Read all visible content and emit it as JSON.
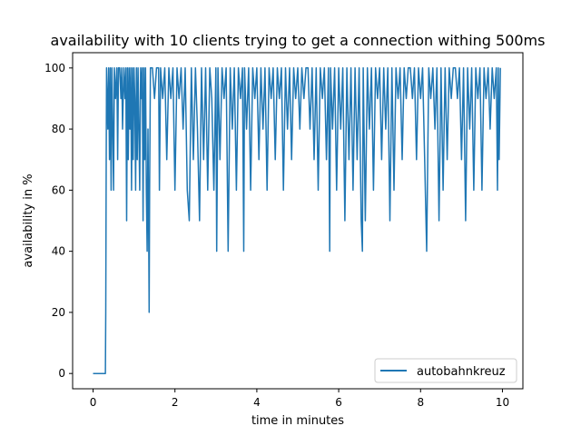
{
  "chart_data": {
    "type": "line",
    "title": "availability with 10 clients trying to get a connection withing 500ms",
    "xlabel": "time in minutes",
    "ylabel": "availability in %",
    "xlim": [
      -0.5,
      10.5
    ],
    "ylim": [
      -5,
      105
    ],
    "xticks": [
      0,
      2,
      4,
      6,
      8,
      10
    ],
    "yticks": [
      0,
      20,
      40,
      60,
      80,
      100
    ],
    "grid": false,
    "legend": "lower-right",
    "series": [
      {
        "name": "autobahnkreuz",
        "color": "#1f77b4",
        "points": [
          [
            0.0,
            0
          ],
          [
            0.3,
            0
          ],
          [
            0.31,
            20
          ],
          [
            0.32,
            70
          ],
          [
            0.33,
            100
          ],
          [
            0.36,
            80
          ],
          [
            0.38,
            100
          ],
          [
            0.4,
            70
          ],
          [
            0.42,
            100
          ],
          [
            0.44,
            60
          ],
          [
            0.46,
            100
          ],
          [
            0.48,
            80
          ],
          [
            0.5,
            60
          ],
          [
            0.52,
            100
          ],
          [
            0.55,
            90
          ],
          [
            0.58,
            100
          ],
          [
            0.6,
            70
          ],
          [
            0.62,
            100
          ],
          [
            0.65,
            100
          ],
          [
            0.68,
            90
          ],
          [
            0.7,
            100
          ],
          [
            0.72,
            80
          ],
          [
            0.75,
            100
          ],
          [
            0.78,
            90
          ],
          [
            0.8,
            100
          ],
          [
            0.82,
            50
          ],
          [
            0.84,
            100
          ],
          [
            0.86,
            70
          ],
          [
            0.88,
            100
          ],
          [
            0.9,
            80
          ],
          [
            0.92,
            100
          ],
          [
            0.94,
            60
          ],
          [
            0.96,
            100
          ],
          [
            0.98,
            70
          ],
          [
            1.0,
            100
          ],
          [
            1.02,
            90
          ],
          [
            1.04,
            60
          ],
          [
            1.06,
            100
          ],
          [
            1.08,
            70
          ],
          [
            1.1,
            100
          ],
          [
            1.12,
            80
          ],
          [
            1.14,
            60
          ],
          [
            1.16,
            100
          ],
          [
            1.18,
            90
          ],
          [
            1.2,
            100
          ],
          [
            1.22,
            50
          ],
          [
            1.24,
            100
          ],
          [
            1.26,
            70
          ],
          [
            1.28,
            100
          ],
          [
            1.3,
            60
          ],
          [
            1.32,
            40
          ],
          [
            1.34,
            80
          ],
          [
            1.36,
            40
          ],
          [
            1.37,
            20
          ],
          [
            1.38,
            60
          ],
          [
            1.4,
            100
          ],
          [
            1.45,
            100
          ],
          [
            1.5,
            90
          ],
          [
            1.55,
            100
          ],
          [
            1.6,
            100
          ],
          [
            1.62,
            60
          ],
          [
            1.65,
            100
          ],
          [
            1.7,
            90
          ],
          [
            1.75,
            100
          ],
          [
            1.8,
            70
          ],
          [
            1.85,
            100
          ],
          [
            1.9,
            90
          ],
          [
            1.95,
            100
          ],
          [
            2.0,
            60
          ],
          [
            2.05,
            100
          ],
          [
            2.1,
            90
          ],
          [
            2.15,
            100
          ],
          [
            2.2,
            80
          ],
          [
            2.25,
            100
          ],
          [
            2.3,
            60
          ],
          [
            2.35,
            50
          ],
          [
            2.4,
            100
          ],
          [
            2.45,
            70
          ],
          [
            2.5,
            100
          ],
          [
            2.55,
            80
          ],
          [
            2.6,
            50
          ],
          [
            2.65,
            100
          ],
          [
            2.7,
            70
          ],
          [
            2.75,
            100
          ],
          [
            2.8,
            60
          ],
          [
            2.85,
            100
          ],
          [
            2.9,
            90
          ],
          [
            2.95,
            60
          ],
          [
            3.0,
            100
          ],
          [
            3.02,
            40
          ],
          [
            3.05,
            100
          ],
          [
            3.1,
            70
          ],
          [
            3.15,
            100
          ],
          [
            3.2,
            90
          ],
          [
            3.25,
            100
          ],
          [
            3.3,
            40
          ],
          [
            3.35,
            100
          ],
          [
            3.4,
            80
          ],
          [
            3.45,
            100
          ],
          [
            3.5,
            60
          ],
          [
            3.55,
            100
          ],
          [
            3.6,
            90
          ],
          [
            3.65,
            100
          ],
          [
            3.68,
            40
          ],
          [
            3.7,
            100
          ],
          [
            3.75,
            80
          ],
          [
            3.8,
            100
          ],
          [
            3.85,
            60
          ],
          [
            3.9,
            100
          ],
          [
            3.95,
            90
          ],
          [
            4.0,
            100
          ],
          [
            4.05,
            70
          ],
          [
            4.1,
            100
          ],
          [
            4.15,
            80
          ],
          [
            4.2,
            100
          ],
          [
            4.25,
            60
          ],
          [
            4.3,
            100
          ],
          [
            4.35,
            90
          ],
          [
            4.4,
            100
          ],
          [
            4.45,
            70
          ],
          [
            4.5,
            100
          ],
          [
            4.55,
            90
          ],
          [
            4.6,
            100
          ],
          [
            4.65,
            60
          ],
          [
            4.7,
            100
          ],
          [
            4.75,
            80
          ],
          [
            4.8,
            100
          ],
          [
            4.85,
            70
          ],
          [
            4.9,
            100
          ],
          [
            4.95,
            90
          ],
          [
            5.0,
            100
          ],
          [
            5.05,
            80
          ],
          [
            5.1,
            100
          ],
          [
            5.15,
            90
          ],
          [
            5.2,
            100
          ],
          [
            5.25,
            100
          ],
          [
            5.3,
            80
          ],
          [
            5.35,
            100
          ],
          [
            5.4,
            70
          ],
          [
            5.45,
            100
          ],
          [
            5.5,
            60
          ],
          [
            5.55,
            100
          ],
          [
            5.6,
            90
          ],
          [
            5.65,
            100
          ],
          [
            5.7,
            70
          ],
          [
            5.75,
            100
          ],
          [
            5.78,
            40
          ],
          [
            5.8,
            100
          ],
          [
            5.85,
            80
          ],
          [
            5.9,
            100
          ],
          [
            5.95,
            60
          ],
          [
            6.0,
            100
          ],
          [
            6.05,
            80
          ],
          [
            6.1,
            100
          ],
          [
            6.15,
            50
          ],
          [
            6.2,
            100
          ],
          [
            6.25,
            70
          ],
          [
            6.3,
            100
          ],
          [
            6.35,
            60
          ],
          [
            6.4,
            100
          ],
          [
            6.45,
            70
          ],
          [
            6.5,
            100
          ],
          [
            6.55,
            50
          ],
          [
            6.58,
            40
          ],
          [
            6.6,
            100
          ],
          [
            6.65,
            50
          ],
          [
            6.7,
            100
          ],
          [
            6.75,
            80
          ],
          [
            6.8,
            100
          ],
          [
            6.85,
            60
          ],
          [
            6.9,
            100
          ],
          [
            6.95,
            90
          ],
          [
            7.0,
            100
          ],
          [
            7.05,
            70
          ],
          [
            7.1,
            100
          ],
          [
            7.15,
            80
          ],
          [
            7.2,
            100
          ],
          [
            7.25,
            50
          ],
          [
            7.3,
            100
          ],
          [
            7.35,
            60
          ],
          [
            7.4,
            100
          ],
          [
            7.45,
            90
          ],
          [
            7.5,
            100
          ],
          [
            7.55,
            70
          ],
          [
            7.6,
            100
          ],
          [
            7.65,
            90
          ],
          [
            7.7,
            100
          ],
          [
            7.75,
            100
          ],
          [
            7.8,
            90
          ],
          [
            7.85,
            100
          ],
          [
            7.9,
            70
          ],
          [
            7.95,
            100
          ],
          [
            8.0,
            90
          ],
          [
            8.05,
            100
          ],
          [
            8.1,
            70
          ],
          [
            8.15,
            40
          ],
          [
            8.2,
            100
          ],
          [
            8.25,
            90
          ],
          [
            8.3,
            100
          ],
          [
            8.35,
            80
          ],
          [
            8.4,
            100
          ],
          [
            8.45,
            50
          ],
          [
            8.5,
            100
          ],
          [
            8.55,
            60
          ],
          [
            8.6,
            100
          ],
          [
            8.65,
            70
          ],
          [
            8.7,
            100
          ],
          [
            8.75,
            90
          ],
          [
            8.8,
            100
          ],
          [
            8.85,
            100
          ],
          [
            8.9,
            90
          ],
          [
            8.95,
            100
          ],
          [
            9.0,
            70
          ],
          [
            9.05,
            100
          ],
          [
            9.1,
            50
          ],
          [
            9.15,
            100
          ],
          [
            9.2,
            80
          ],
          [
            9.25,
            100
          ],
          [
            9.3,
            60
          ],
          [
            9.35,
            100
          ],
          [
            9.4,
            90
          ],
          [
            9.45,
            100
          ],
          [
            9.5,
            60
          ],
          [
            9.55,
            100
          ],
          [
            9.6,
            90
          ],
          [
            9.65,
            100
          ],
          [
            9.7,
            80
          ],
          [
            9.75,
            100
          ],
          [
            9.8,
            90
          ],
          [
            9.85,
            100
          ],
          [
            9.88,
            60
          ],
          [
            9.9,
            100
          ],
          [
            9.92,
            70
          ],
          [
            9.95,
            100
          ]
        ]
      }
    ]
  }
}
